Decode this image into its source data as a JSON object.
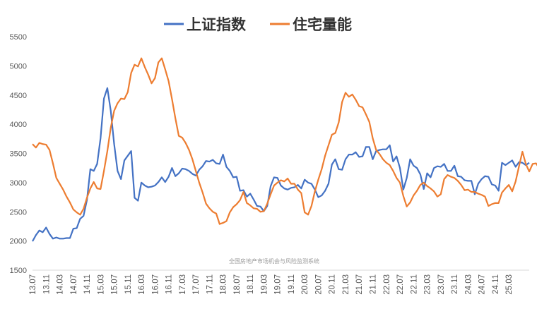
{
  "chart_data": {
    "type": "line",
    "legend_position": "top-center",
    "grid": false,
    "ylim": [
      1500,
      5500
    ],
    "yticks": [
      1500,
      2000,
      2500,
      3000,
      3500,
      4000,
      4500,
      5000,
      5500
    ],
    "xtick_labels": [
      "13.07",
      "13.11",
      "14.03",
      "14.07",
      "14.11",
      "15.03",
      "15.07",
      "15.11",
      "16.03",
      "16.07",
      "16.11",
      "17.03",
      "17.07",
      "17.11",
      "18.03",
      "18.07",
      "18.11",
      "19.03",
      "19.07",
      "19.11",
      "20.03",
      "20.07",
      "20.11",
      "21.03",
      "21.07",
      "21.11",
      "22.03",
      "22.07",
      "22.11",
      "23.03",
      "23.07",
      "23.11",
      "24.03",
      "24.07",
      "24.11",
      "25.03"
    ],
    "x_start": "2013.07",
    "x_step_months": 1,
    "watermark": "全国房地产市场机会与风险监测系统",
    "series": [
      {
        "name": "上证指数",
        "color": "#4472C4",
        "values": [
          1994,
          2100,
          2180,
          2150,
          2230,
          2120,
          2040,
          2060,
          2040,
          2040,
          2050,
          2050,
          2210,
          2220,
          2380,
          2430,
          2700,
          3230,
          3200,
          3320,
          3760,
          4440,
          4620,
          4230,
          3660,
          3200,
          3060,
          3380,
          3460,
          3540,
          2740,
          2690,
          3000,
          2950,
          2920,
          2930,
          2950,
          3010,
          3090,
          3010,
          3100,
          3250,
          3110,
          3160,
          3240,
          3230,
          3200,
          3150,
          3120,
          3220,
          3280,
          3370,
          3360,
          3390,
          3330,
          3320,
          3480,
          3270,
          3200,
          3090,
          3100,
          2860,
          2870,
          2760,
          2810,
          2710,
          2600,
          2590,
          2510,
          2600,
          2940,
          3090,
          3080,
          2950,
          2900,
          2880,
          2910,
          2920,
          2960,
          2900,
          3050,
          3000,
          2980,
          2880,
          2750,
          2780,
          2860,
          2980,
          3310,
          3400,
          3230,
          3220,
          3400,
          3480,
          3480,
          3520,
          3440,
          3450,
          3610,
          3610,
          3400,
          3540,
          3560,
          3570,
          3570,
          3640,
          3360,
          3450,
          3250,
          2880,
          3080,
          3400,
          3290,
          3250,
          3140,
          2890,
          3160,
          3090,
          3250,
          3280,
          3270,
          3320,
          3200,
          3200,
          3290,
          3110,
          3100,
          3040,
          3030,
          3030,
          2800,
          2980,
          3060,
          3110,
          3100,
          2970,
          2950,
          2860,
          3340,
          3300,
          3340,
          3380,
          3270,
          3350,
          3340,
          3300,
          3340
        ]
      },
      {
        "name": "住宅量能",
        "color": "#ED7D31",
        "values": [
          3660,
          3600,
          3680,
          3660,
          3650,
          3560,
          3330,
          3080,
          2980,
          2880,
          2760,
          2660,
          2540,
          2490,
          2450,
          2550,
          2740,
          2900,
          3010,
          2900,
          2890,
          3200,
          3540,
          3940,
          4230,
          4360,
          4440,
          4430,
          4550,
          4880,
          5020,
          4990,
          5130,
          4980,
          4850,
          4700,
          4790,
          5060,
          5130,
          4940,
          4740,
          4430,
          4100,
          3800,
          3770,
          3680,
          3560,
          3400,
          3200,
          3000,
          2830,
          2640,
          2560,
          2500,
          2470,
          2290,
          2310,
          2340,
          2490,
          2580,
          2630,
          2700,
          2840,
          2650,
          2610,
          2560,
          2550,
          2500,
          2510,
          2640,
          2800,
          2950,
          3000,
          3040,
          3020,
          3070,
          2980,
          2980,
          2880,
          2820,
          2490,
          2450,
          2600,
          2850,
          3050,
          3230,
          3460,
          3640,
          3820,
          3850,
          4030,
          4380,
          4540,
          4470,
          4510,
          4420,
          4310,
          4290,
          4170,
          4040,
          3760,
          3560,
          3490,
          3400,
          3340,
          3300,
          3200,
          3080,
          3000,
          2770,
          2590,
          2660,
          2780,
          2860,
          2960,
          3000,
          2940,
          2900,
          2850,
          2760,
          2800,
          3060,
          3130,
          3100,
          3080,
          3030,
          2960,
          2870,
          2880,
          2840,
          2840,
          2810,
          2790,
          2760,
          2600,
          2630,
          2650,
          2650,
          2830,
          2900,
          2960,
          2850,
          3020,
          3280,
          3530,
          3320,
          3190,
          3320,
          3330,
          3240
        ]
      }
    ]
  }
}
